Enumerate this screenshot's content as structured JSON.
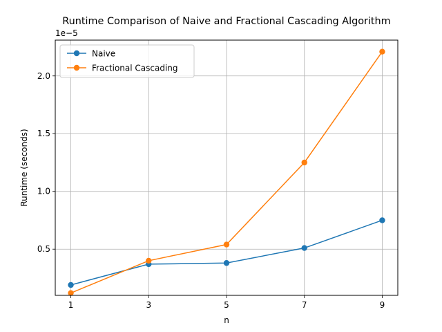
{
  "chart_data": {
    "type": "line",
    "title": "Runtime Comparison of Naive and Fractional Cascading Algorithm",
    "xlabel": "n",
    "ylabel": "Runtime (seconds)",
    "y_offset_label": "1e−5",
    "x": [
      1,
      3,
      5,
      7,
      9
    ],
    "x_ticks": [
      "1",
      "3",
      "5",
      "7",
      "9"
    ],
    "y_ticks": [
      {
        "value": 5e-06,
        "label": "0.5"
      },
      {
        "value": 1e-05,
        "label": "1.0"
      },
      {
        "value": 1.5e-05,
        "label": "1.5"
      },
      {
        "value": 2e-05,
        "label": "2.0"
      }
    ],
    "xlim": [
      0.6,
      9.4
    ],
    "ylim": [
      1e-06,
      2.31e-05
    ],
    "grid": true,
    "legend_position": "top-left",
    "series": [
      {
        "name": "Naive",
        "color": "#1f77b4",
        "values": [
          1.9e-06,
          3.7e-06,
          3.8e-06,
          5.1e-06,
          7.5e-06
        ]
      },
      {
        "name": "Fractional Cascading",
        "color": "#ff7f0e",
        "values": [
          1.2e-06,
          4e-06,
          5.4e-06,
          1.25e-05,
          2.21e-05
        ]
      }
    ]
  }
}
